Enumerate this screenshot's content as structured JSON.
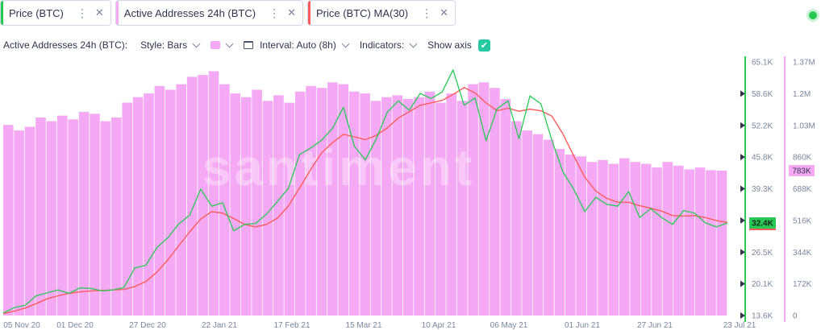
{
  "tabs": [
    {
      "label": "Price (BTC)",
      "color": "#26c953"
    },
    {
      "label": "Active Addresses 24h (BTC)",
      "color": "#f5a9f5"
    },
    {
      "label": "Price (BTC) MA(30)",
      "color": "#ff5b5b"
    }
  ],
  "settings": {
    "metric_label": "Active Addresses 24h (BTC):",
    "style": "Style: Bars",
    "interval": "Interval: Auto (8h)",
    "indicators": "Indicators:",
    "show_axis": "Show axis"
  },
  "watermark": "santiment",
  "chart_data": {
    "type": "line",
    "x_ticks": [
      "05 Nov 20",
      "01 Dec 20",
      "27 Dec 20",
      "22 Jan 21",
      "17 Feb 21",
      "15 Mar 21",
      "10 Apr 21",
      "06 May 21",
      "01 Jun 21",
      "27 Jun 21",
      "23 Jul 21"
    ],
    "price_axis": {
      "ticks": [
        "65.1K",
        "58.6K",
        "52.2K",
        "45.8K",
        "39.3K",
        "32.9K",
        "26.5K",
        "20.1K",
        "13.6K"
      ],
      "min": 13600,
      "max": 65100,
      "current": "32.4K",
      "current_value": 32400
    },
    "addresses_axis": {
      "ticks": [
        "1.37M",
        "1.2M",
        "1.03M",
        "860K",
        "688K",
        "516K",
        "344K",
        "172K",
        "0"
      ],
      "min": 0,
      "max": 1370000,
      "current": "783K",
      "current_value": 783000
    },
    "series": [
      {
        "name": "Price (BTC)",
        "color": "#26c953",
        "values": [
          14100,
          15200,
          15700,
          17600,
          18200,
          18800,
          18100,
          19200,
          19100,
          18600,
          18800,
          19300,
          23300,
          23800,
          27400,
          29400,
          32200,
          34000,
          39300,
          35800,
          36500,
          30800,
          32100,
          32300,
          34200,
          36800,
          39500,
          46300,
          47600,
          49200,
          51600,
          55900,
          48000,
          45200,
          49500,
          54900,
          57200,
          55300,
          58700,
          57700,
          59000,
          63500,
          56300,
          57800,
          49100,
          55600,
          57200,
          49500,
          58200,
          56600,
          49200,
          42800,
          39200,
          34700,
          37600,
          36200,
          35800,
          38800,
          33500,
          35300,
          33500,
          32100,
          34900,
          34400,
          32400,
          31600,
          32400
        ]
      },
      {
        "name": "Price (BTC) MA(30)",
        "color": "#ff5b5b",
        "values": [
          14000,
          14500,
          15100,
          16000,
          17000,
          17600,
          18100,
          18400,
          18600,
          18700,
          18800,
          18900,
          19500,
          20500,
          22400,
          24900,
          27800,
          30600,
          33200,
          34700,
          34400,
          33300,
          32100,
          31600,
          32100,
          33400,
          35900,
          39500,
          43200,
          46600,
          48700,
          50400,
          49900,
          49300,
          50200,
          51700,
          53700,
          55000,
          56300,
          56800,
          57300,
          58500,
          59900,
          58800,
          56800,
          55200,
          55700,
          55100,
          55500,
          55200,
          54100,
          50500,
          46000,
          41700,
          38900,
          37400,
          36600,
          36600,
          35900,
          35400,
          34800,
          33900,
          33800,
          33900,
          33500,
          32900,
          32500
        ]
      },
      {
        "name": "Active Addresses 24h (BTC)",
        "color": "#f5a9f5",
        "values": [
          1030000,
          1000000,
          1020000,
          1070000,
          1050000,
          1080000,
          1060000,
          1100000,
          1090000,
          1050000,
          1070000,
          1150000,
          1180000,
          1200000,
          1240000,
          1220000,
          1250000,
          1290000,
          1300000,
          1320000,
          1250000,
          1200000,
          1180000,
          1220000,
          1160000,
          1190000,
          1150000,
          1210000,
          1240000,
          1230000,
          1260000,
          1250000,
          1210000,
          1200000,
          1160000,
          1180000,
          1190000,
          1170000,
          1180000,
          1210000,
          1150000,
          1200000,
          1160000,
          1250000,
          1260000,
          1230000,
          1170000,
          1050000,
          1000000,
          980000,
          950000,
          900000,
          870000,
          860000,
          830000,
          840000,
          820000,
          850000,
          830000,
          820000,
          800000,
          830000,
          810000,
          790000,
          800000,
          785000,
          783000
        ]
      }
    ]
  }
}
